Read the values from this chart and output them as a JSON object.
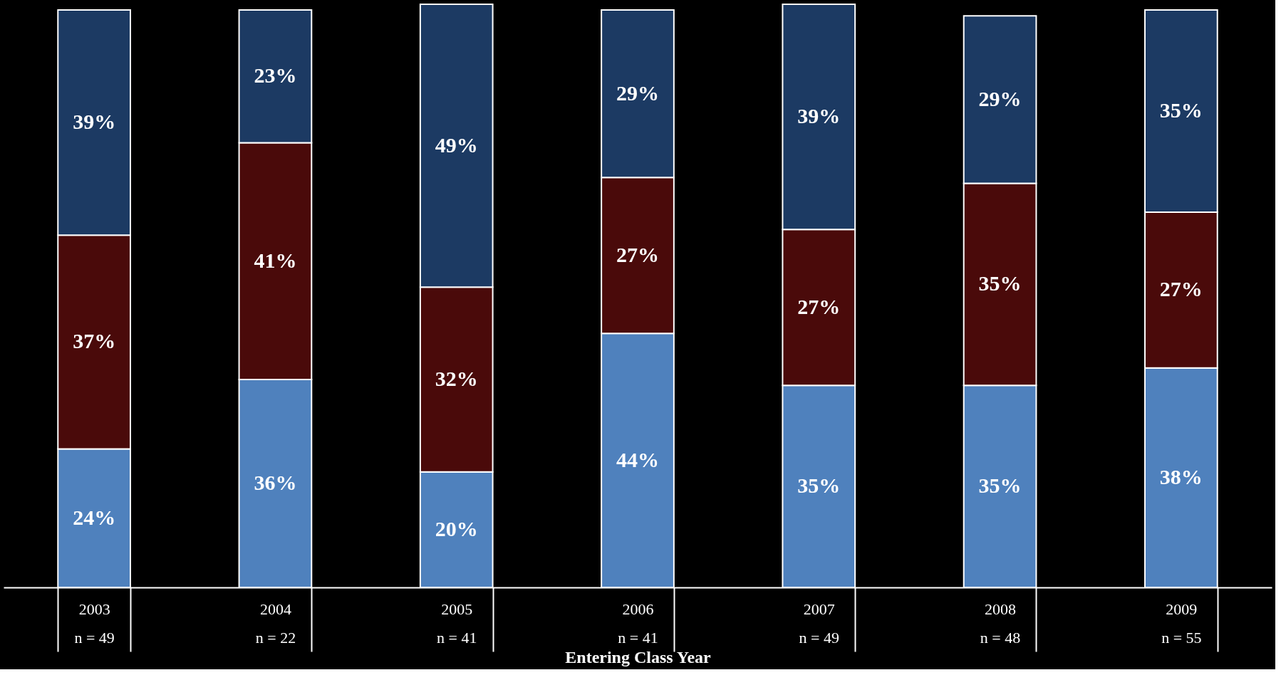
{
  "chart_data": {
    "type": "bar",
    "stacked": true,
    "xlabel": "Entering Class Year",
    "categories": [
      "2003\nn = 49",
      "2004\nn = 22",
      "2005\nn = 41",
      "2006\nn = 41",
      "2007\nn = 49",
      "2008\nn = 48",
      "2009\nn = 55"
    ],
    "series": [
      {
        "color": "#4f81bd",
        "values": [
          24,
          36,
          20,
          44,
          35,
          35,
          38
        ],
        "value_labels": [
          "24%",
          "36%",
          "20%",
          "44%",
          "35%",
          "35%",
          "38%"
        ]
      },
      {
        "color": "#4a0a0a",
        "values": [
          37,
          41,
          32,
          27,
          27,
          35,
          27
        ],
        "value_labels": [
          "37%",
          "41%",
          "32%",
          "27%",
          "27%",
          "35%",
          "27%"
        ]
      },
      {
        "color": "#1c3a63",
        "values": [
          39,
          23,
          49,
          29,
          39,
          29,
          35
        ],
        "value_labels": [
          "39%",
          "23%",
          "49%",
          "29%",
          "39%",
          "29%",
          "35%"
        ]
      }
    ]
  }
}
